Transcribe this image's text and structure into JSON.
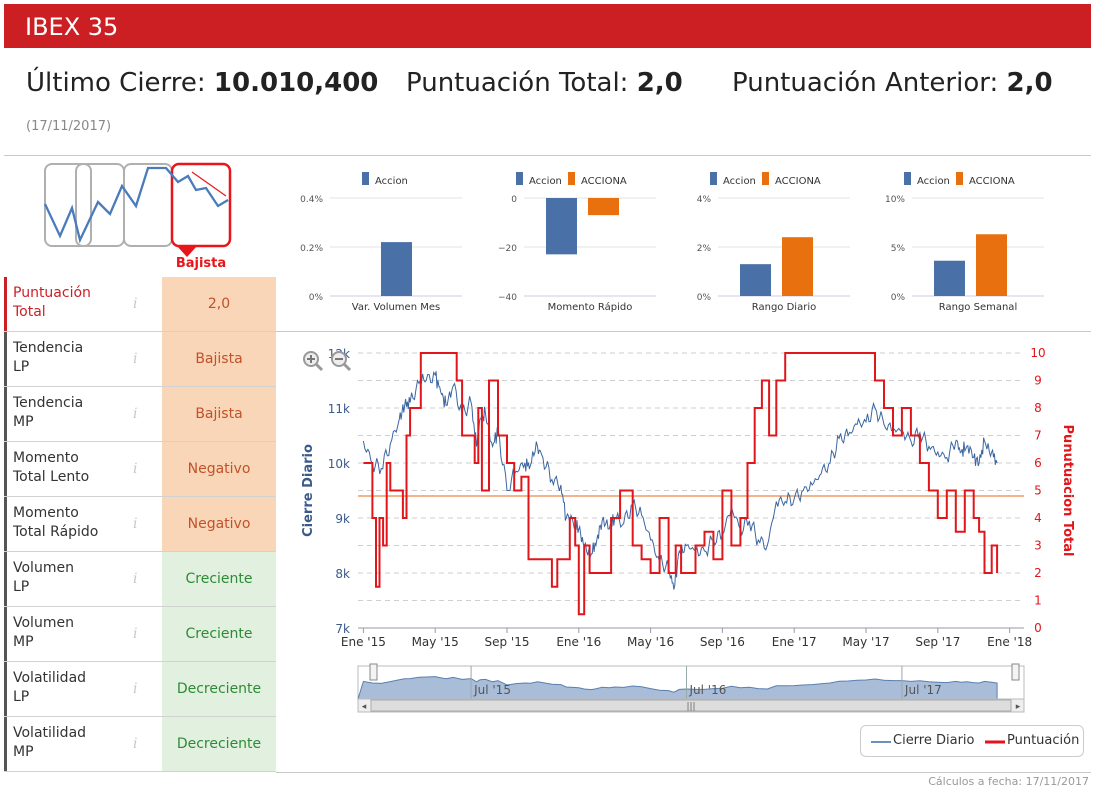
{
  "header": {
    "title": "IBEX 35"
  },
  "summary": {
    "last_close_label": "Último Cierre:",
    "last_close_value": "10.010,400",
    "total_score_label": "Puntuación Total:",
    "total_score_value": "2,0",
    "prev_score_label": "Puntuación Anterior:",
    "prev_score_value": "2,0",
    "date": "(17/11/2017)"
  },
  "trend_icon": {
    "label": "Bajista",
    "icon": "downtrend-icon",
    "color": "#e8161b"
  },
  "indicators": [
    {
      "label_lines": [
        "Puntuación",
        "Total"
      ],
      "value": "2,0",
      "status": "neg"
    },
    {
      "label_lines": [
        "Tendencia",
        "LP"
      ],
      "value": "Bajista",
      "status": "neg"
    },
    {
      "label_lines": [
        "Tendencia",
        "MP"
      ],
      "value": "Bajista",
      "status": "neg"
    },
    {
      "label_lines": [
        "Momento",
        "Total Lento"
      ],
      "value": "Negativo",
      "status": "neg"
    },
    {
      "label_lines": [
        "Momento",
        "Total Rápido"
      ],
      "value": "Negativo",
      "status": "neg"
    },
    {
      "label_lines": [
        "Volumen",
        "LP"
      ],
      "value": "Creciente",
      "status": "pos"
    },
    {
      "label_lines": [
        "Volumen",
        "MP"
      ],
      "value": "Creciente",
      "status": "pos"
    },
    {
      "label_lines": [
        "Volatilidad",
        "LP"
      ],
      "value": "Decreciente",
      "status": "pos"
    },
    {
      "label_lines": [
        "Volatilidad",
        "MP"
      ],
      "value": "Decreciente",
      "status": "pos"
    }
  ],
  "colors": {
    "accion": "#4a70a8",
    "acciona": "#e8700f",
    "cierre": "#3a66a0",
    "puntuacion": "#e0161b",
    "brand": "#cc1f24"
  },
  "footer": {
    "text": "Cálculos a fecha: 17/11/2017"
  },
  "chart_data": [
    {
      "type": "bar",
      "title": "Var. Volumen Mes",
      "categories": [
        "Var. Volumen Mes"
      ],
      "series": [
        {
          "name": "Accion",
          "values": [
            0.22
          ]
        }
      ],
      "ylim": [
        0,
        0.4
      ],
      "yticks": [
        "0%",
        "0.2%",
        "0.4%"
      ]
    },
    {
      "type": "bar",
      "title": "Momento Rápido",
      "categories": [
        "Momento Rápido"
      ],
      "series": [
        {
          "name": "Accion",
          "values": [
            -23
          ]
        },
        {
          "name": "ACCIONA",
          "values": [
            -7
          ]
        }
      ],
      "ylim": [
        -40,
        0
      ],
      "yticks": [
        "−40",
        "−20",
        "0"
      ]
    },
    {
      "type": "bar",
      "title": "Rango Diario",
      "categories": [
        "Rango Diario"
      ],
      "series": [
        {
          "name": "Accion",
          "values": [
            1.3
          ]
        },
        {
          "name": "ACCIONA",
          "values": [
            2.4
          ]
        }
      ],
      "ylim": [
        0,
        4
      ],
      "yticks": [
        "0%",
        "2%",
        "4%"
      ]
    },
    {
      "type": "bar",
      "title": "Rango Semanal",
      "categories": [
        "Rango Semanal"
      ],
      "series": [
        {
          "name": "Accion",
          "values": [
            3.6
          ]
        },
        {
          "name": "ACCIONA",
          "values": [
            6.3
          ]
        }
      ],
      "ylim": [
        0,
        10
      ],
      "yticks": [
        "0%",
        "5%",
        "10%"
      ]
    },
    {
      "type": "line",
      "ylabel_left": "Cierre Diario",
      "ylabel_right": "Punutuacion Total",
      "ylim_left": [
        7000,
        12000
      ],
      "ylim_right": [
        0,
        10
      ],
      "yticks_left": [
        "7k",
        "8k",
        "9k",
        "10k",
        "11k",
        "12k"
      ],
      "yticks_right": [
        "0",
        "1",
        "2",
        "3",
        "4",
        "5",
        "6",
        "7",
        "8",
        "9",
        "10"
      ],
      "xticks": [
        "Ene '15",
        "May '15",
        "Sep '15",
        "Ene '16",
        "May '16",
        "Sep '16",
        "Ene '17",
        "May '17",
        "Sep '17",
        "Ene '18"
      ],
      "xticks_months": [
        0,
        4,
        8,
        12,
        16,
        20,
        24,
        28,
        32,
        36
      ],
      "navigator_labels": [
        "Jul '15",
        "Jul '16",
        "Jul '17"
      ],
      "navigator_months": [
        6,
        18,
        30
      ],
      "x_months_range": [
        -0.3,
        36.8
      ],
      "reference_line_value": 4.8,
      "series": [
        {
          "name": "Cierre Diario",
          "axis": "left",
          "x_months": [
            0,
            0.5,
            1,
            1.5,
            2,
            2.3,
            2.6,
            3.1,
            3.5,
            4,
            4.3,
            4.6,
            5,
            5.5,
            6,
            6.3,
            6.5,
            6.8,
            7.2,
            7.5,
            8,
            8.5,
            9,
            9.3,
            9.7,
            10,
            10.5,
            11,
            11.3,
            11.7,
            12,
            12.3,
            12.7,
            13,
            13.3,
            13.7,
            14,
            14.5,
            15,
            15.5,
            16,
            16.5,
            17,
            17.3,
            17.6,
            18,
            18.5,
            19,
            19.5,
            20,
            20.5,
            21,
            21.5,
            22,
            22.5,
            23,
            23.5,
            24,
            24.5,
            25,
            25.5,
            26,
            26.5,
            27,
            27.5,
            28,
            28.5,
            29,
            29.5,
            30,
            30.5,
            31,
            31.5,
            32,
            32.5,
            33,
            33.3,
            33.6,
            34,
            34.3,
            34.6,
            35,
            35.3
          ],
          "values": [
            10400,
            10000,
            9900,
            10350,
            10800,
            11050,
            11100,
            11450,
            11500,
            11600,
            11300,
            11050,
            11400,
            10900,
            11100,
            10300,
            10800,
            10900,
            10300,
            10600,
            9500,
            9850,
            10000,
            9950,
            10300,
            10100,
            9700,
            9600,
            9000,
            8900,
            8800,
            8500,
            8350,
            8600,
            8950,
            8800,
            9000,
            8900,
            9250,
            9050,
            8600,
            8200,
            8100,
            7700,
            8400,
            8500,
            8400,
            8400,
            8600,
            8700,
            9200,
            8800,
            8950,
            8600,
            8500,
            9300,
            9300,
            9350,
            9500,
            9600,
            9800,
            10000,
            10450,
            10500,
            10700,
            10750,
            11000,
            10700,
            10600,
            10600,
            10400,
            10550,
            10300,
            10200,
            10100,
            10400,
            10200,
            10300,
            10100,
            10000,
            10400,
            10200,
            10000
          ]
        },
        {
          "name": "Puntuación",
          "axis": "right",
          "x_months": [
            0,
            0.5,
            0.7,
            0.9,
            1.1,
            1.3,
            1.5,
            2.2,
            2.4,
            2.6,
            3.2,
            3.5,
            5.2,
            5.5,
            6.2,
            6.4,
            6.6,
            7.0,
            7.5,
            8.0,
            8.4,
            8.8,
            9.2,
            10.5,
            10.8,
            11.5,
            11.8,
            12.0,
            12.3,
            12.6,
            13.2,
            13.8,
            14.3,
            15.0,
            15.5,
            16.0,
            16.5,
            17.0,
            17.4,
            17.7,
            18.5,
            19.0,
            19.5,
            20.0,
            20.5,
            21.0,
            21.4,
            21.8,
            22.2,
            22.6,
            23.0,
            23.5,
            24.0,
            24.5,
            25.0,
            25.5,
            26.0,
            26.5,
            27.0,
            27.5,
            28.0,
            28.5,
            29.0,
            29.5,
            30.0,
            30.5,
            31.0,
            31.5,
            32.0,
            32.5,
            33.0,
            33.5,
            34.0,
            34.3,
            34.6,
            35.0,
            35.3
          ],
          "values": [
            6,
            4,
            1.5,
            4,
            3,
            6,
            5,
            4,
            7,
            8,
            10,
            10,
            9,
            7,
            6,
            8,
            5,
            9,
            7,
            6,
            5,
            5.5,
            2.5,
            1.5,
            2.5,
            4,
            3,
            0.5,
            3,
            2,
            2,
            4,
            5,
            3,
            2.5,
            2,
            4,
            2,
            3,
            2,
            3,
            3.5,
            2.5,
            5,
            3,
            4,
            6,
            8,
            9,
            7,
            9,
            10,
            10,
            10,
            10,
            10,
            10,
            10,
            10,
            10,
            10,
            9,
            8,
            7,
            8,
            7,
            6,
            5,
            4,
            5,
            3.5,
            5,
            4,
            3.5,
            2,
            3,
            2
          ]
        }
      ]
    }
  ]
}
